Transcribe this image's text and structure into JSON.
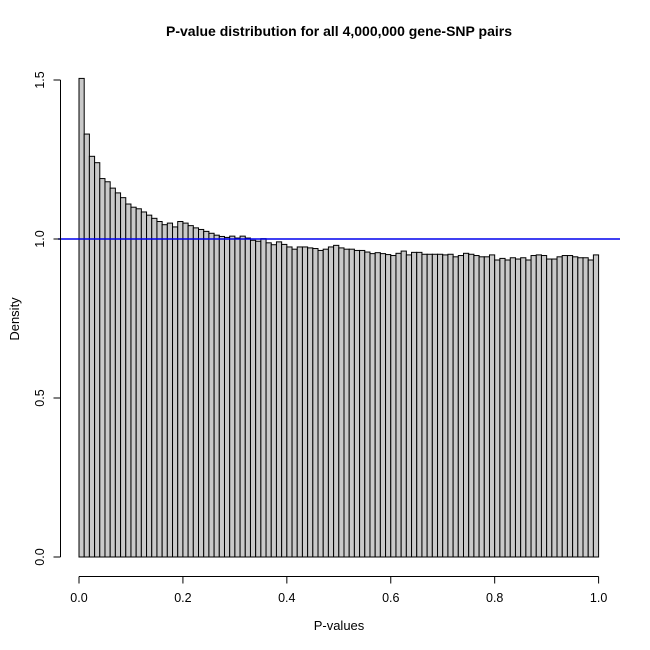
{
  "title": "P-value distribution for all 4,000,000 gene-SNP pairs",
  "colors": {
    "background": "#ffffff",
    "bar_fill": "#c9c9c9",
    "bar_stroke": "#000000",
    "axis": "#000000",
    "reference_line": "#0000ee",
    "text": "#000000"
  },
  "chart_data": {
    "type": "bar",
    "subtype": "histogram",
    "title": "P-value distribution for all 4,000,000 gene-SNP pairs",
    "xlabel": "P-values",
    "ylabel": "Density",
    "xlim": [
      0,
      1
    ],
    "ylim": [
      0,
      1.5
    ],
    "x_ticks": [
      0.0,
      0.2,
      0.4,
      0.6,
      0.8,
      1.0
    ],
    "x_tick_labels": [
      "0.0",
      "0.2",
      "0.4",
      "0.6",
      "0.8",
      "1.0"
    ],
    "y_ticks": [
      0.0,
      0.5,
      1.0,
      1.5
    ],
    "y_tick_labels": [
      "0.0",
      "0.5",
      "1.0",
      "1.5"
    ],
    "grid": false,
    "legend": false,
    "reference_line_y": 1.0,
    "bin_width": 0.01,
    "bin_start": 0.0,
    "values": [
      1.505,
      1.33,
      1.26,
      1.24,
      1.19,
      1.18,
      1.16,
      1.145,
      1.13,
      1.11,
      1.1,
      1.095,
      1.085,
      1.075,
      1.065,
      1.055,
      1.045,
      1.05,
      1.038,
      1.055,
      1.05,
      1.042,
      1.035,
      1.03,
      1.024,
      1.018,
      1.012,
      1.008,
      1.005,
      1.009,
      1.003,
      1.009,
      1.003,
      0.996,
      0.993,
      1.001,
      0.988,
      0.982,
      0.991,
      0.983,
      0.975,
      0.968,
      0.975,
      0.975,
      0.972,
      0.97,
      0.964,
      0.968,
      0.975,
      0.98,
      0.972,
      0.968,
      0.968,
      0.964,
      0.964,
      0.959,
      0.954,
      0.957,
      0.954,
      0.951,
      0.948,
      0.955,
      0.962,
      0.95,
      0.958,
      0.958,
      0.952,
      0.952,
      0.952,
      0.952,
      0.95,
      0.952,
      0.944,
      0.948,
      0.955,
      0.952,
      0.948,
      0.944,
      0.944,
      0.95,
      0.934,
      0.939,
      0.934,
      0.941,
      0.937,
      0.941,
      0.934,
      0.948,
      0.95,
      0.948,
      0.937,
      0.937,
      0.944,
      0.948,
      0.948,
      0.944,
      0.941,
      0.941,
      0.934,
      0.95
    ]
  }
}
